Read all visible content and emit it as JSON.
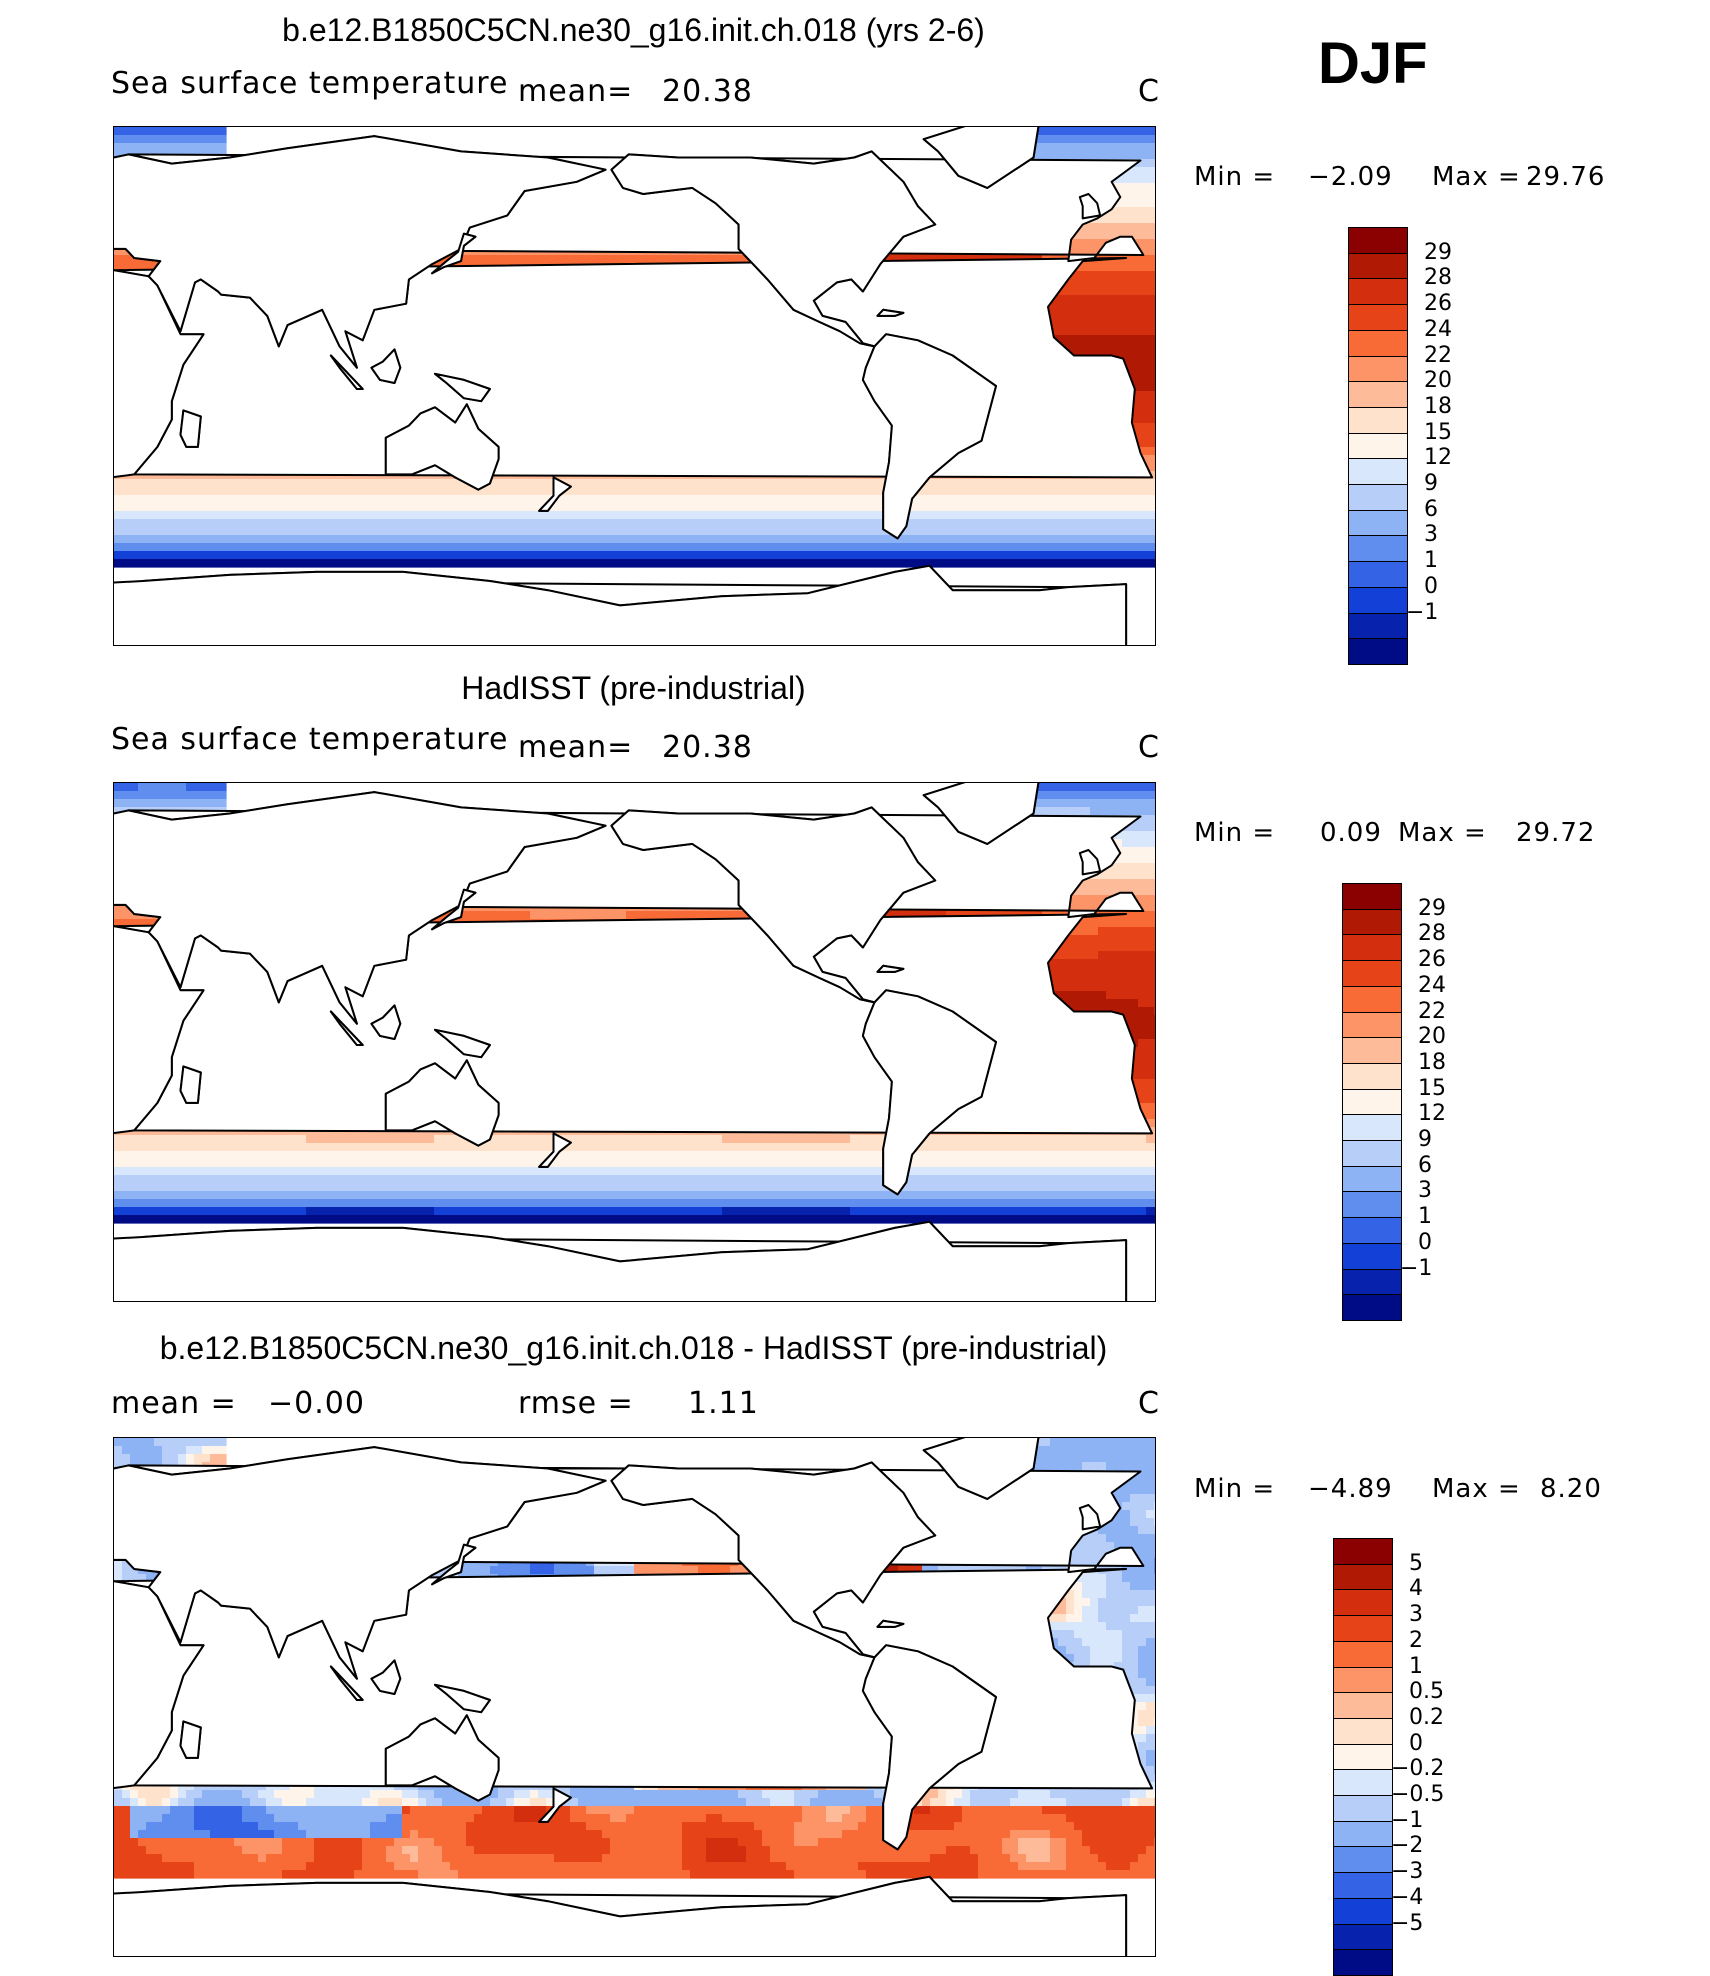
{
  "season": "DJF",
  "colors": {
    "warm": [
      "#fff0e2",
      "#fdd2b8",
      "#fcab87",
      "#f97e54",
      "#ef5c2f",
      "#de3b14",
      "#c52408",
      "#a51204",
      "#8b0000"
    ],
    "cool": [
      "#dbe8fb",
      "#bcd2f7",
      "#9bbcf4",
      "#7aa3f1",
      "#4f81ec",
      "#2b5ee5",
      "#1540d4",
      "#0a25b1",
      "#021090"
    ],
    "land": "#ffffff",
    "coast": "#000000"
  },
  "panels": [
    {
      "title": "b.e12.B1850C5CN.ne30_g16.init.ch.018 (yrs 2-6)",
      "variable": "Sea surface temperature",
      "mean_label": "mean=",
      "mean_value": "20.38",
      "left_text": "",
      "units": "C",
      "min_label": "Min =",
      "min_value": "−2.09",
      "max_label": "Max =",
      "max_value": "29.76",
      "colorbar": {
        "labels": [
          "29",
          "28",
          "26",
          "24",
          "22",
          "20",
          "18",
          "15",
          "12",
          "9",
          "6",
          "3",
          "1",
          "0",
          "−1"
        ],
        "colors": [
          "#8b0000",
          "#b01a05",
          "#d32e0d",
          "#e64418",
          "#f86a36",
          "#fc9468",
          "#fdbb99",
          "#fee2cc",
          "#fff4ea",
          "#d8e7fc",
          "#b6cef8",
          "#8eb3f4",
          "#5f8eee",
          "#3463e6",
          "#1340d6",
          "#0722ac",
          "#000c85"
        ]
      },
      "field": "sst_model"
    },
    {
      "title": "HadISST (pre-industrial)",
      "variable": "Sea surface temperature",
      "mean_label": "mean=",
      "mean_value": "20.38",
      "left_text": "",
      "units": "C",
      "min_label": "Min =",
      "min_value": "0.09",
      "max_label": "Max =",
      "max_value": "29.72",
      "colorbar": {
        "labels": [
          "29",
          "28",
          "26",
          "24",
          "22",
          "20",
          "18",
          "15",
          "12",
          "9",
          "6",
          "3",
          "1",
          "0",
          "−1"
        ],
        "colors": [
          "#8b0000",
          "#b01a05",
          "#d32e0d",
          "#e64418",
          "#f86a36",
          "#fc9468",
          "#fdbb99",
          "#fee2cc",
          "#fff4ea",
          "#d8e7fc",
          "#b6cef8",
          "#8eb3f4",
          "#5f8eee",
          "#3463e6",
          "#1340d6",
          "#0722ac",
          "#000c85"
        ]
      },
      "field": "sst_obs"
    },
    {
      "title": "b.e12.B1850C5CN.ne30_g16.init.ch.018 - HadISST (pre-industrial)",
      "variable": "",
      "mean_label": "mean =",
      "mean_value": "−0.00",
      "rmse_label": "rmse =",
      "rmse_value": "1.11",
      "units": "C",
      "min_label": "Min =",
      "min_value": "−4.89",
      "max_label": "Max =",
      "max_value": "8.20",
      "colorbar": {
        "labels": [
          "5",
          "4",
          "3",
          "2",
          "1",
          "0.5",
          "0.2",
          "0",
          "−0.2",
          "−0.5",
          "−1",
          "−2",
          "−3",
          "−4",
          "−5"
        ],
        "colors": [
          "#8b0000",
          "#b01a05",
          "#d32e0d",
          "#e64418",
          "#f86a36",
          "#fc9468",
          "#fdbb99",
          "#fee2cc",
          "#fff4ea",
          "#d8e7fc",
          "#b6cef8",
          "#8eb3f4",
          "#5f8eee",
          "#3463e6",
          "#1340d6",
          "#0722ac",
          "#000c85"
        ]
      },
      "field": "sst_diff"
    }
  ]
}
